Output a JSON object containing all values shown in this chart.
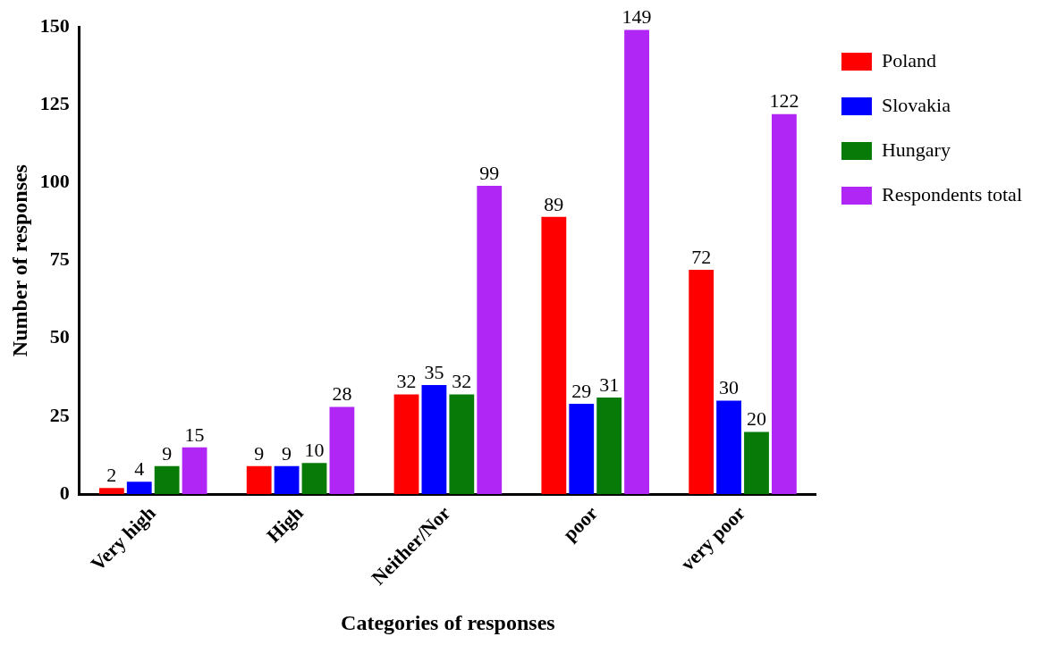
{
  "chart_data": {
    "type": "bar",
    "xlabel": "Categories of responses",
    "ylabel": "Number of responses",
    "categories": [
      "Very high",
      "High",
      "Neither/Nor",
      "poor",
      "very poor"
    ],
    "series": [
      {
        "name": "Poland",
        "color": "#ff0000",
        "values": [
          2,
          9,
          32,
          89,
          72
        ]
      },
      {
        "name": "Slovakia",
        "color": "#0000ff",
        "values": [
          4,
          9,
          35,
          29,
          30
        ]
      },
      {
        "name": "Hungary",
        "color": "#087a08",
        "values": [
          9,
          10,
          32,
          31,
          20
        ]
      },
      {
        "name": "Respondents total",
        "color": "#b026f5",
        "values": [
          15,
          28,
          99,
          149,
          122
        ]
      }
    ],
    "ylim": [
      0,
      150
    ],
    "yticks": [
      0,
      25,
      50,
      75,
      100,
      125,
      150
    ],
    "data_labels": true,
    "grid": false,
    "legend": "top right"
  }
}
